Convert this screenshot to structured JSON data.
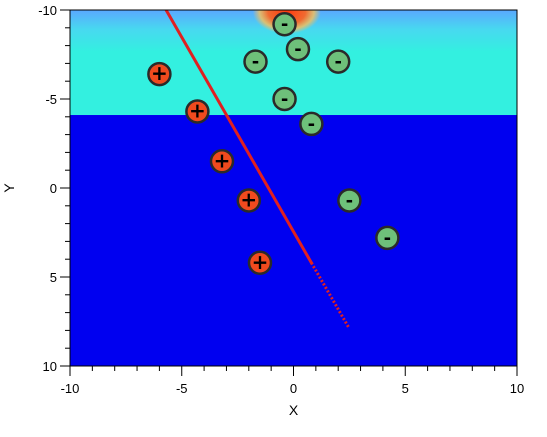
{
  "chart_data": {
    "type": "scatter",
    "xlabel": "X",
    "ylabel": "Y",
    "xlim": [
      -10,
      10
    ],
    "ylim": [
      -10,
      10
    ],
    "y_axis_inverted": true,
    "x_ticks": [
      -10,
      -5,
      0,
      5,
      10
    ],
    "y_ticks": [
      -10,
      -5,
      0,
      5,
      10
    ],
    "x_tick_labels": [
      "-10",
      "-5",
      "0",
      "5",
      "10"
    ],
    "y_tick_labels": [
      "-10",
      "-5",
      "0",
      "5",
      "10"
    ],
    "background_regions": [
      {
        "name": "upper-layer",
        "y_from": -10,
        "y_to": -4.1,
        "color": "#33f0e0"
      },
      {
        "name": "lower-layer",
        "y_from": -4.1,
        "y_to": 10,
        "color": "#0000f0"
      }
    ],
    "hot_spot": {
      "x": -0.3,
      "y": -10,
      "color": "#f04020"
    },
    "series": [
      {
        "charge": "+",
        "color": "#f04a1e",
        "label": "+",
        "points": [
          {
            "x": -6.0,
            "y": -6.4
          },
          {
            "x": -4.3,
            "y": -4.3
          },
          {
            "x": -3.2,
            "y": -1.5
          },
          {
            "x": -2.0,
            "y": 0.7
          },
          {
            "x": -1.5,
            "y": 4.2
          }
        ]
      },
      {
        "charge": "-",
        "color": "#6ec07a",
        "label": "-",
        "points": [
          {
            "x": -0.4,
            "y": -9.2
          },
          {
            "x": 0.2,
            "y": -7.8
          },
          {
            "x": -1.7,
            "y": -7.1
          },
          {
            "x": 2.0,
            "y": -7.1
          },
          {
            "x": -0.4,
            "y": -5.0
          },
          {
            "x": 0.8,
            "y": -3.6
          },
          {
            "x": 2.5,
            "y": 0.7
          },
          {
            "x": 4.2,
            "y": 2.8
          }
        ]
      }
    ],
    "trajectory": {
      "color": "#e02020",
      "solid": [
        {
          "x": -5.7,
          "y": -10.0
        },
        {
          "x": 0.8,
          "y": 4.2
        }
      ],
      "dotted": [
        {
          "x": 0.8,
          "y": 4.2
        },
        {
          "x": 2.5,
          "y": 7.9
        }
      ]
    }
  }
}
